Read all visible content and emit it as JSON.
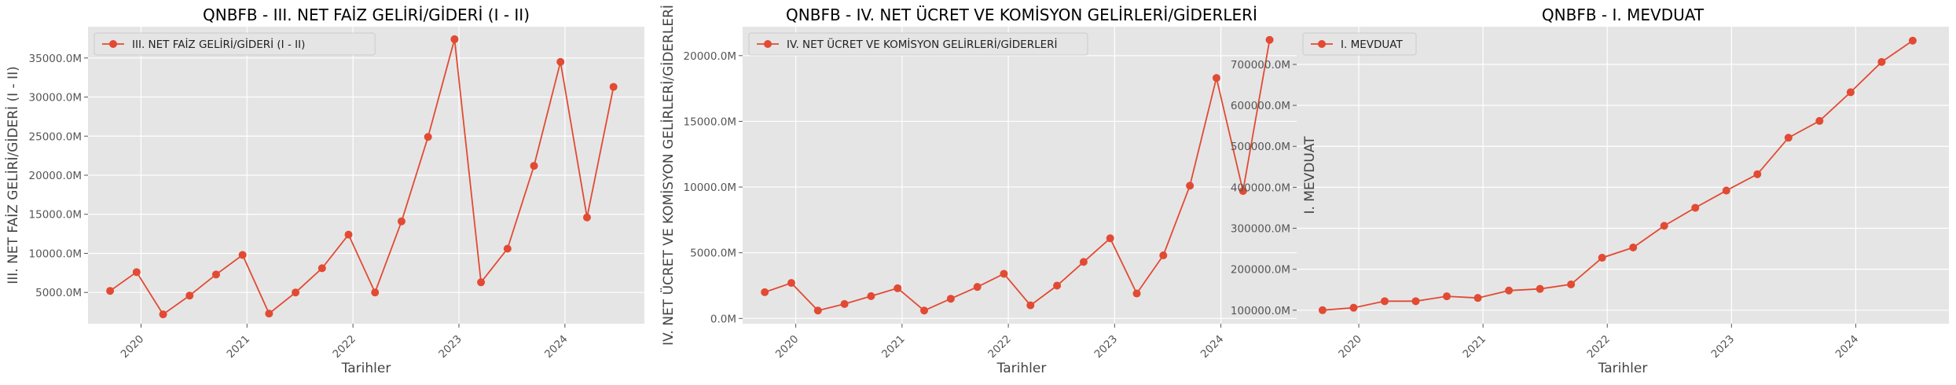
{
  "chart_data": [
    {
      "type": "line",
      "title": "QNBFB - III. NET FAİZ GELİRİ/GİDERİ (I - II)",
      "xlabel": "Tarihler",
      "ylabel": "III. NET FAİZ GELİRİ/GİDERİ (I - II)",
      "x_ticks": [
        "2020",
        "2021",
        "2022",
        "2023",
        "2024"
      ],
      "y_ticks": [
        "5000.0M",
        "10000.0M",
        "15000.0M",
        "20000.0M",
        "25000.0M",
        "30000.0M",
        "35000.0M"
      ],
      "ylim": [
        1000,
        39000
      ],
      "legend": "upper-left",
      "grid": true,
      "series": [
        {
          "name": "III. NET FAİZ GELİRİ/GİDERİ (I - II)",
          "color": "#E24A33",
          "x": [
            "2019-09",
            "2019-12",
            "2020-03",
            "2020-06",
            "2020-09",
            "2020-12",
            "2021-03",
            "2021-06",
            "2021-09",
            "2021-12",
            "2022-03",
            "2022-06",
            "2022-09",
            "2022-12",
            "2023-03",
            "2023-06",
            "2023-09",
            "2023-12",
            "2024-03",
            "2024-06"
          ],
          "values": [
            5200,
            7600,
            2200,
            4600,
            7300,
            9800,
            2300,
            5000,
            8100,
            12400,
            5000,
            14100,
            24900,
            37400,
            6300,
            10600,
            21200,
            34500,
            14600,
            31300
          ]
        }
      ]
    },
    {
      "type": "line",
      "title": "QNBFB - IV. NET ÜCRET VE KOMİSYON GELİRLERİ/GİDERLERİ",
      "xlabel": "Tarihler",
      "ylabel": "IV. NET ÜCRET VE KOMİSYON GELİRLERİ/GİDERLERİ",
      "x_ticks": [
        "2020",
        "2021",
        "2022",
        "2023",
        "2024"
      ],
      "y_ticks": [
        "0.0M",
        "5000.0M",
        "10000.0M",
        "15000.0M",
        "20000.0M"
      ],
      "ylim": [
        -400,
        22200
      ],
      "legend": "upper-left",
      "grid": true,
      "series": [
        {
          "name": "IV. NET ÜCRET VE KOMİSYON GELİRLERİ/GİDERLERİ",
          "color": "#E24A33",
          "x": [
            "2019-09",
            "2019-12",
            "2020-03",
            "2020-06",
            "2020-09",
            "2020-12",
            "2021-03",
            "2021-06",
            "2021-09",
            "2021-12",
            "2022-03",
            "2022-06",
            "2022-09",
            "2022-12",
            "2023-03",
            "2023-06",
            "2023-09",
            "2023-12",
            "2024-03",
            "2024-06"
          ],
          "values": [
            2000,
            2700,
            600,
            1100,
            1700,
            2300,
            600,
            1500,
            2400,
            3400,
            1000,
            2500,
            4300,
            6100,
            1900,
            4800,
            10100,
            18300,
            9700,
            21200
          ]
        }
      ]
    },
    {
      "type": "line",
      "title": "QNBFB - I. MEVDUAT",
      "xlabel": "Tarihler",
      "ylabel": "I. MEVDUAT",
      "x_ticks": [
        "2020",
        "2021",
        "2022",
        "2023",
        "2024"
      ],
      "y_ticks": [
        "100000.0M",
        "200000.0M",
        "300000.0M",
        "400000.0M",
        "500000.0M",
        "600000.0M",
        "700000.0M"
      ],
      "ylim": [
        67000,
        792000
      ],
      "legend": "upper-left",
      "grid": true,
      "series": [
        {
          "name": "I. MEVDUAT",
          "color": "#E24A33",
          "x": [
            "2019-09",
            "2019-12",
            "2020-03",
            "2020-06",
            "2020-09",
            "2020-12",
            "2021-03",
            "2021-06",
            "2021-09",
            "2021-12",
            "2022-03",
            "2022-06",
            "2022-09",
            "2022-12",
            "2023-03",
            "2023-06",
            "2023-09",
            "2023-12",
            "2024-03",
            "2024-06"
          ],
          "values": [
            100000,
            106000,
            122000,
            122000,
            134000,
            130000,
            148000,
            152000,
            163000,
            228000,
            253000,
            306000,
            350000,
            392000,
            432000,
            521000,
            562000,
            632000,
            706000,
            758000
          ]
        }
      ]
    }
  ]
}
